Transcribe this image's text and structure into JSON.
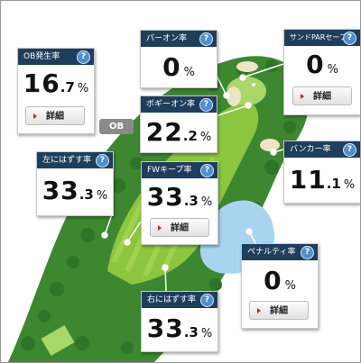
{
  "cards": {
    "ob": {
      "title": "OB発生率",
      "int": "16",
      "dec": ".7",
      "unit": "%",
      "button": "詳細"
    },
    "par_on": {
      "title": "パーオン率",
      "int": "0",
      "dec": "",
      "unit": "%"
    },
    "sand_save": {
      "title": "サンドPARセーブ率",
      "int": "0",
      "dec": "",
      "unit": "%",
      "button": "詳細"
    },
    "bogey_on": {
      "title": "ボギーオン率",
      "int": "22",
      "dec": ".2",
      "unit": "%"
    },
    "left_miss": {
      "title": "左にはずす率",
      "int": "33",
      "dec": ".3",
      "unit": "%"
    },
    "fw_keep": {
      "title": "FWキープ率",
      "int": "33",
      "dec": ".3",
      "unit": "%",
      "button": "詳細"
    },
    "bunker": {
      "title": "バンカー率",
      "int": "11",
      "dec": ".1",
      "unit": "%"
    },
    "penalty": {
      "title": "ペナルティ率",
      "int": "0",
      "dec": "",
      "unit": "%",
      "button": "詳細"
    },
    "right_miss": {
      "title": "右にはずす率",
      "int": "33",
      "dec": ".3",
      "unit": "%"
    }
  },
  "help_glyph": "?",
  "ob_badge": "OB",
  "colors": {
    "header": "#1f3e5c",
    "help": "#4f8fd0",
    "rough": "#3f8a34",
    "fairway": "#8cc63f",
    "water": "#a8d4f0",
    "sand": "#efe3c6"
  }
}
